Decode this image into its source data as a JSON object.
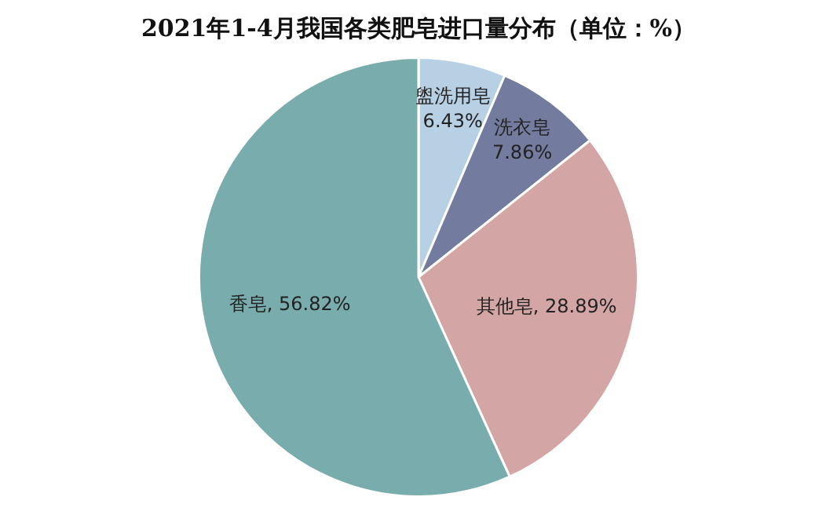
{
  "chart_data": {
    "type": "pie",
    "title": "2021年1-4月我国各类肥皂进口量分布（单位：%）",
    "categories": [
      "盥洗用皂",
      "洗衣皂",
      "其他皂",
      "香皂"
    ],
    "values": [
      6.43,
      7.86,
      28.89,
      56.82
    ],
    "colors": [
      "#b7d0e3",
      "#737c9e",
      "#d4a5a5",
      "#79adad"
    ],
    "value_labels": [
      "6.43%",
      "7.86%",
      "28.89%",
      "56.82%"
    ],
    "legend": false
  }
}
